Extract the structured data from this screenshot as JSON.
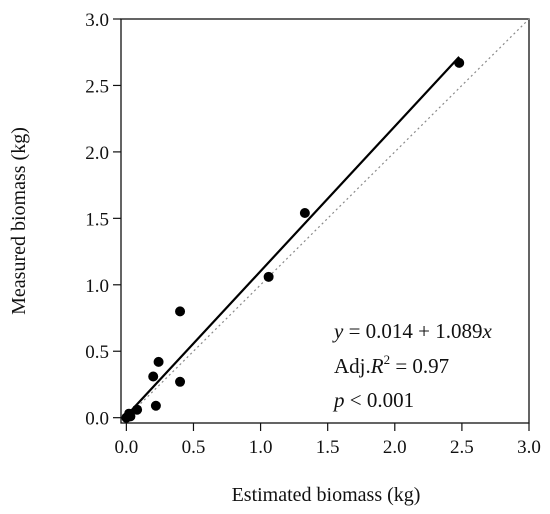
{
  "chart_data": {
    "type": "scatter",
    "xlabel": "Estimated biomass (kg)",
    "ylabel": "Measured biomass (kg)",
    "xlim": [
      0.0,
      3.0
    ],
    "ylim": [
      0.0,
      3.0
    ],
    "x_ticks": [
      "0.0",
      "0.5",
      "1.0",
      "1.5",
      "2.0",
      "2.5",
      "3.0"
    ],
    "y_ticks": [
      "0.0",
      "0.5",
      "1.0",
      "1.5",
      "2.0",
      "2.5",
      "3.0"
    ],
    "grid": false,
    "points": [
      {
        "x": 0.0,
        "y": 0.0
      },
      {
        "x": 0.02,
        "y": 0.03
      },
      {
        "x": 0.03,
        "y": 0.01
      },
      {
        "x": 0.08,
        "y": 0.06
      },
      {
        "x": 0.2,
        "y": 0.31
      },
      {
        "x": 0.22,
        "y": 0.09
      },
      {
        "x": 0.24,
        "y": 0.42
      },
      {
        "x": 0.4,
        "y": 0.8
      },
      {
        "x": 0.4,
        "y": 0.27
      },
      {
        "x": 1.06,
        "y": 1.06
      },
      {
        "x": 1.33,
        "y": 1.54
      },
      {
        "x": 2.48,
        "y": 2.67
      }
    ],
    "fit_line": {
      "intercept": 0.014,
      "slope": 1.089,
      "x_range": [
        0.0,
        2.48
      ]
    },
    "reference_line": {
      "intercept": 0.0,
      "slope": 1.0,
      "style": "dotted",
      "color": "#8a8a8a"
    },
    "annotations": {
      "equation": {
        "y_var": "y",
        "rhs": " = 0.014 + 1.089",
        "x_var": "x"
      },
      "r2": {
        "prefix": "Adj.",
        "symbol": "R",
        "exponent": "2",
        "value": " = 0.97"
      },
      "p": {
        "symbol": "p",
        "value": " < 0.001"
      }
    },
    "colors": {
      "points": "#000000",
      "fit": "#000000",
      "axis": "#111111"
    }
  }
}
